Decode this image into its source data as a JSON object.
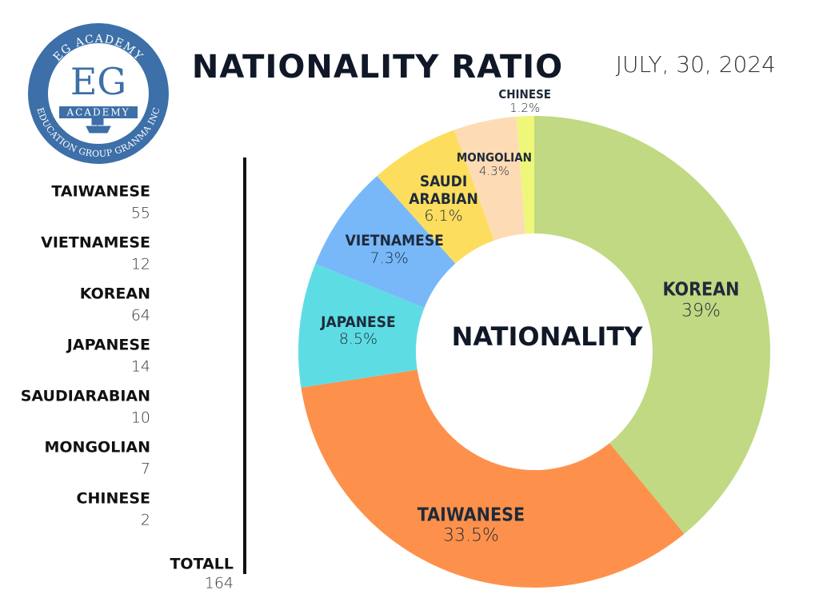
{
  "logo": {
    "ring_top": "EG ACADEMY",
    "initials": "EG",
    "name": "ACADEMY",
    "ring_bottom": "EDUCATION GROUP GRANMA INC"
  },
  "date": "JULY, 30, 2024",
  "summary": {
    "rows": [
      {
        "name": "TAIWANESE",
        "count": 55
      },
      {
        "name": "VIETNAMESE",
        "count": 12
      },
      {
        "name": "KOREAN",
        "count": 64
      },
      {
        "name": "JAPANESE",
        "count": 14
      },
      {
        "name": "SAUDIARABIAN",
        "count": 10
      },
      {
        "name": "MONGOLIAN",
        "count": 7
      },
      {
        "name": "CHINESE",
        "count": 2
      }
    ],
    "total_label": "TOTALL",
    "total": 164
  },
  "chart_data": {
    "type": "pie",
    "title": "NATIONALITY RATIO",
    "center_label": "NATIONALITY",
    "categories": [
      "KOREAN",
      "TAIWANESE",
      "JAPANESE",
      "VIETNAMESE",
      "SAUDI ARABIAN",
      "MONGOLIAN",
      "CHINESE"
    ],
    "values": [
      39,
      33.5,
      8.5,
      7.3,
      6.1,
      4.3,
      1.2
    ],
    "value_labels": [
      "39%",
      "33.5%",
      "8.5%",
      "7.3%",
      "6.1%",
      "4.3%",
      "1.2%"
    ],
    "colors": [
      "#c0d982",
      "#fd914c",
      "#5ddde3",
      "#78b8f8",
      "#fddd5e",
      "#fddcb5",
      "#eef77a"
    ]
  }
}
